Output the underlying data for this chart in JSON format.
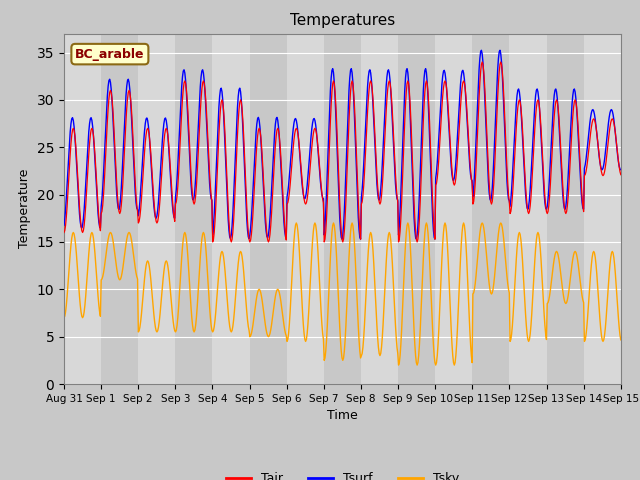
{
  "title": "Temperatures",
  "xlabel": "Time",
  "ylabel": "Temperature",
  "annotation": "BC_arable",
  "ylim": [
    0,
    37
  ],
  "yticks": [
    0,
    5,
    10,
    15,
    20,
    25,
    30,
    35
  ],
  "date_labels": [
    "Aug 31",
    "Sep 1",
    "Sep 2",
    "Sep 3",
    "Sep 4",
    "Sep 5",
    "Sep 6",
    "Sep 7",
    "Sep 8",
    "Sep 9",
    "Sep 10",
    "Sep 11",
    "Sep 12",
    "Sep 13",
    "Sep 14",
    "Sep 15"
  ],
  "legend_labels": [
    "Tair",
    "Tsurf",
    "Tsky"
  ],
  "line_colors": {
    "Tair": "#ff0000",
    "Tsurf": "#0000ff",
    "Tsky": "#ffa500"
  },
  "n_days": 15,
  "points_per_day": 48,
  "day_peaks_tair": [
    27,
    31,
    27,
    32,
    30,
    27,
    27,
    32,
    32,
    32,
    32,
    34,
    30,
    30,
    28,
    29
  ],
  "day_mins_tair": [
    16,
    18,
    17,
    19,
    15,
    15,
    19,
    15,
    19,
    15,
    21,
    19,
    18,
    18,
    22,
    23
  ],
  "tsky_peaks": [
    16,
    16,
    13,
    16,
    14,
    10,
    17,
    17,
    16,
    17,
    17,
    17,
    16,
    14,
    14,
    14
  ],
  "tsky_mins": [
    7,
    11,
    5.5,
    5.5,
    5.5,
    5,
    4.5,
    2.5,
    3,
    2,
    2,
    9.5,
    4.5,
    8.5,
    4.5,
    4.5
  ],
  "stripe_colors": [
    "#d8d8d8",
    "#c8c8c8"
  ],
  "fig_bg": "#c8c8c8",
  "grid_color": "white",
  "annotation_color": "#8b0000",
  "annotation_bg": "#ffffcc",
  "annotation_edge": "#8b6914"
}
